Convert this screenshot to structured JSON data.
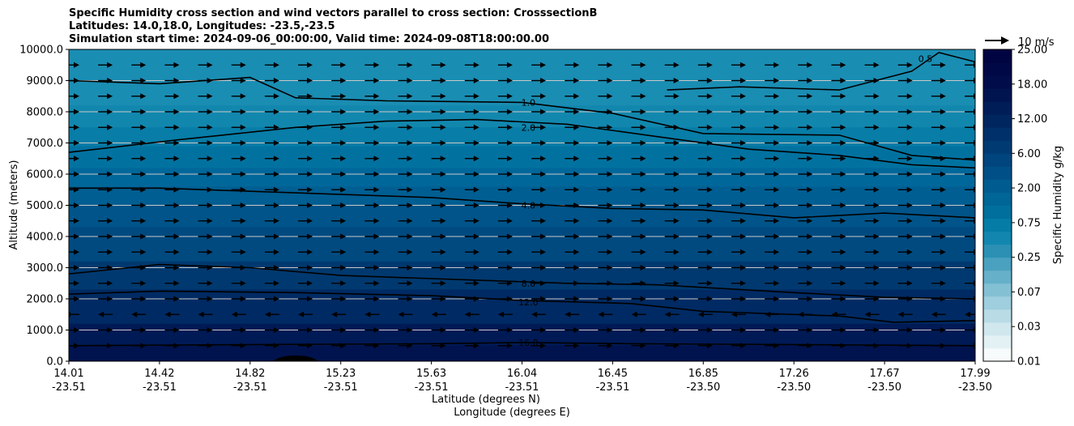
{
  "chart_data": {
    "type": "heatmap",
    "title_lines": [
      "Specific Humidity cross section and wind vectors parallel to cross section: CrosssectionB",
      "Latitudes: 14.0,18.0, Longitudes: -23.5,-23.5",
      "Simulation start time: 2024-09-06_00:00:00, Valid time: 2024-09-08T18:00:00.00"
    ],
    "ylabel": "Altitude (meters)",
    "xlabel_lat": "Latitude (degrees N)",
    "xlabel_lon": "Longitude (degrees E)",
    "ylim": [
      0,
      10000
    ],
    "yticks": [
      "0.0",
      "1000.0",
      "2000.0",
      "3000.0",
      "4000.0",
      "5000.0",
      "6000.0",
      "7000.0",
      "8000.0",
      "9000.0",
      "10000.0"
    ],
    "xticks": [
      {
        "lat": "14.01",
        "lon": "-23.51"
      },
      {
        "lat": "14.42",
        "lon": "-23.51"
      },
      {
        "lat": "14.82",
        "lon": "-23.51"
      },
      {
        "lat": "15.23",
        "lon": "-23.51"
      },
      {
        "lat": "15.63",
        "lon": "-23.51"
      },
      {
        "lat": "16.04",
        "lon": "-23.51"
      },
      {
        "lat": "16.45",
        "lon": "-23.51"
      },
      {
        "lat": "16.85",
        "lon": "-23.50"
      },
      {
        "lat": "17.26",
        "lon": "-23.50"
      },
      {
        "lat": "17.67",
        "lon": "-23.50"
      },
      {
        "lat": "17.99",
        "lon": "-23.50"
      }
    ],
    "colorbar": {
      "label": "Specific Humidity g/kg",
      "tick_labels": [
        "0.01",
        "0.03",
        "0.07",
        "0.25",
        "0.75",
        "2.00",
        "6.00",
        "12.00",
        "18.00",
        "25.00"
      ],
      "level_colors": [
        "#f7fbfc",
        "#e4f1f4",
        "#d0e7ee",
        "#b8dbe6",
        "#9fcede",
        "#84c0d4",
        "#66b0c9",
        "#4aa1bf",
        "#2b90b4",
        "#1286ae",
        "#047ca6",
        "#006f9d",
        "#006597",
        "#005c90",
        "#005087",
        "#00457d",
        "#003a73",
        "#003069",
        "#002660",
        "#001d58",
        "#001450",
        "#000d4a",
        "#000845",
        "#000441"
      ]
    },
    "quiver_key": "10 m/s",
    "humidity_band_colors": [
      {
        "top_altitude": 500,
        "color": "#00134e"
      },
      {
        "top_altitude": 1200,
        "color": "#001a56"
      },
      {
        "top_altitude": 2300,
        "color": "#002a63"
      },
      {
        "top_altitude": 3200,
        "color": "#00396f"
      },
      {
        "top_altitude": 4300,
        "color": "#004a80"
      },
      {
        "top_altitude": 5000,
        "color": "#005489"
      },
      {
        "top_altitude": 5600,
        "color": "#005e92"
      },
      {
        "top_altitude": 6200,
        "color": "#00679a"
      },
      {
        "top_altitude": 6900,
        "color": "#0172a0"
      },
      {
        "top_altitude": 7500,
        "color": "#077da7"
      },
      {
        "top_altitude": 8200,
        "color": "#1287ae"
      },
      {
        "top_altitude": 10000,
        "color": "#1a8db3"
      }
    ],
    "contours": [
      {
        "label": "16.0",
        "label_x": 0.507,
        "label_alt": 600,
        "points": [
          [
            0.0,
            500
          ],
          [
            0.12,
            520
          ],
          [
            0.25,
            540
          ],
          [
            0.4,
            560
          ],
          [
            0.5,
            600
          ],
          [
            0.62,
            560
          ],
          [
            0.75,
            540
          ],
          [
            0.88,
            520
          ],
          [
            1.0,
            500
          ]
        ]
      },
      {
        "label": "12.0",
        "label_x": 0.507,
        "label_alt": 1900,
        "points": [
          [
            0.0,
            2150
          ],
          [
            0.1,
            2250
          ],
          [
            0.25,
            2200
          ],
          [
            0.4,
            2100
          ],
          [
            0.5,
            1950
          ],
          [
            0.62,
            1850
          ],
          [
            0.7,
            1600
          ],
          [
            0.85,
            1450
          ],
          [
            0.91,
            1250
          ],
          [
            1.0,
            1300
          ]
        ]
      },
      {
        "label": "8.0",
        "label_x": 0.507,
        "label_alt": 2500,
        "points": [
          [
            0.0,
            2800
          ],
          [
            0.1,
            3100
          ],
          [
            0.2,
            3000
          ],
          [
            0.3,
            2750
          ],
          [
            0.45,
            2600
          ],
          [
            0.55,
            2500
          ],
          [
            0.65,
            2450
          ],
          [
            0.8,
            2200
          ],
          [
            0.9,
            2050
          ],
          [
            1.0,
            2000
          ]
        ]
      },
      {
        "label": "4.0",
        "label_x": 0.507,
        "label_alt": 5000,
        "points": [
          [
            0.0,
            5550
          ],
          [
            0.1,
            5550
          ],
          [
            0.25,
            5400
          ],
          [
            0.4,
            5250
          ],
          [
            0.5,
            5050
          ],
          [
            0.6,
            4900
          ],
          [
            0.7,
            4850
          ],
          [
            0.8,
            4600
          ],
          [
            0.9,
            4750
          ],
          [
            1.0,
            4600
          ]
        ]
      },
      {
        "label": "2.0",
        "label_x": 0.507,
        "label_alt": 7500,
        "points": [
          [
            0.0,
            6700
          ],
          [
            0.12,
            7100
          ],
          [
            0.25,
            7500
          ],
          [
            0.35,
            7700
          ],
          [
            0.45,
            7750
          ],
          [
            0.55,
            7600
          ],
          [
            0.65,
            7200
          ],
          [
            0.75,
            6800
          ],
          [
            0.85,
            6600
          ],
          [
            0.93,
            6300
          ],
          [
            1.0,
            6200
          ]
        ]
      },
      {
        "label": "1.0",
        "label_x": 0.507,
        "label_alt": 8300,
        "points": [
          [
            0.0,
            9000
          ],
          [
            0.1,
            8900
          ],
          [
            0.2,
            9100
          ],
          [
            0.25,
            8450
          ],
          [
            0.35,
            8350
          ],
          [
            0.5,
            8300
          ],
          [
            0.6,
            7950
          ],
          [
            0.7,
            7300
          ],
          [
            0.85,
            7250
          ],
          [
            0.93,
            6600
          ],
          [
            1.0,
            6450
          ]
        ]
      },
      {
        "label": "0.5",
        "label_x": 0.945,
        "label_alt": 9700,
        "points": [
          [
            0.66,
            8700
          ],
          [
            0.74,
            8800
          ],
          [
            0.85,
            8700
          ],
          [
            0.93,
            9300
          ],
          [
            0.96,
            9900
          ],
          [
            1.0,
            9600
          ]
        ]
      }
    ],
    "wind_rows": [
      {
        "altitude": 500,
        "direction": "east"
      },
      {
        "altitude": 1000,
        "direction": "east"
      },
      {
        "altitude": 1500,
        "direction": "west"
      },
      {
        "altitude": 2000,
        "direction": "east"
      },
      {
        "altitude": 2500,
        "direction": "east"
      },
      {
        "altitude": 3000,
        "direction": "east"
      },
      {
        "altitude": 3500,
        "direction": "east"
      },
      {
        "altitude": 4000,
        "direction": "east"
      },
      {
        "altitude": 4500,
        "direction": "east"
      },
      {
        "altitude": 5000,
        "direction": "east"
      },
      {
        "altitude": 5500,
        "direction": "east"
      },
      {
        "altitude": 6000,
        "direction": "east"
      },
      {
        "altitude": 6500,
        "direction": "east"
      },
      {
        "altitude": 7000,
        "direction": "east"
      },
      {
        "altitude": 7500,
        "direction": "east"
      },
      {
        "altitude": 8000,
        "direction": "east"
      },
      {
        "altitude": 8500,
        "direction": "east"
      },
      {
        "altitude": 9000,
        "direction": "east"
      },
      {
        "altitude": 9500,
        "direction": "east"
      }
    ]
  }
}
